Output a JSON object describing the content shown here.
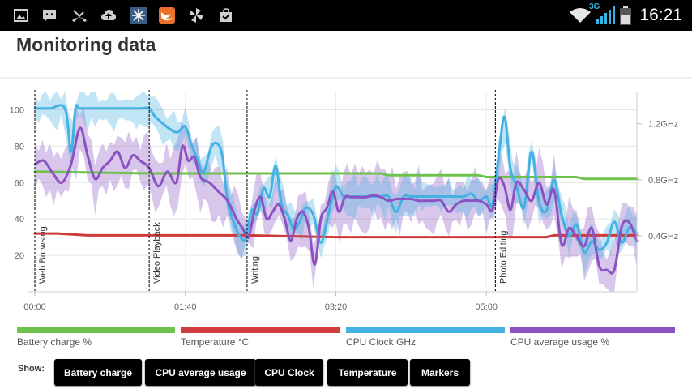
{
  "status_bar": {
    "time": "16:21",
    "network": "3G",
    "left_icons": [
      "gallery-icon",
      "chat-icon",
      "missed-call-icon",
      "cloud-upload-icon",
      "snowflake-icon",
      "swift-icon",
      "pinwheel-icon",
      "shopping-bag-icon"
    ],
    "right_icons": [
      "wifi-icon",
      "signal-icon",
      "battery-icon"
    ]
  },
  "page": {
    "title": "Monitoring data"
  },
  "chart_data": {
    "type": "line",
    "x_unit": "mm:ss",
    "x_ticks": [
      "00:00",
      "01:40",
      "03:20",
      "05:00"
    ],
    "x_tick_values": [
      0,
      100,
      200,
      300
    ],
    "xlim": [
      0,
      400
    ],
    "y_left_ticks": [
      "20",
      "40",
      "60",
      "80",
      "100"
    ],
    "y_left_tick_values": [
      20,
      40,
      60,
      80,
      100
    ],
    "ylim_left": [
      0,
      110
    ],
    "y_right_ticks": [
      "0.4GHz",
      "0.8GHz",
      "1.2GHz"
    ],
    "y_right_tick_values": [
      0.4,
      0.8,
      1.2
    ],
    "ylim_right": [
      0,
      1.43
    ],
    "grid": true,
    "markers": [
      {
        "x": 0,
        "label": "Web Browsing"
      },
      {
        "x": 76,
        "label": "Video Playback"
      },
      {
        "x": 141,
        "label": "Writing"
      },
      {
        "x": 306,
        "label": "Photo Editing"
      }
    ],
    "series": [
      {
        "name": "Battery charge %",
        "axis": "left",
        "color": "#6dc24b",
        "x": [
          0,
          76,
          141,
          160,
          230,
          235,
          295,
          300,
          360,
          365,
          400
        ],
        "values": [
          66,
          65,
          65,
          65,
          65,
          64,
          64,
          63,
          63,
          62,
          62
        ]
      },
      {
        "name": "Temperature °C",
        "axis": "left",
        "color": "#cf3a3a",
        "x": [
          0,
          15,
          35,
          50,
          100,
          141,
          200,
          300,
          340,
          345,
          400
        ],
        "values": [
          32,
          32,
          31,
          31,
          31,
          31,
          30,
          30,
          30,
          31,
          31
        ]
      },
      {
        "name": "CPU Clock GHz",
        "axis": "right",
        "color": "#45b1e2",
        "x": [
          0,
          10,
          20,
          24,
          27,
          30,
          40,
          50,
          60,
          70,
          76,
          80,
          90,
          95,
          100,
          104,
          108,
          112,
          118,
          124,
          128,
          132,
          136,
          140,
          144,
          148,
          152,
          156,
          160,
          164,
          168,
          172,
          176,
          180,
          185,
          190,
          195,
          200,
          205,
          210,
          215,
          220,
          225,
          230,
          235,
          240,
          245,
          250,
          255,
          260,
          265,
          270,
          275,
          280,
          285,
          290,
          295,
          300,
          304,
          308,
          312,
          316,
          320,
          325,
          330,
          335,
          340,
          345,
          350,
          355,
          360,
          365,
          370,
          375,
          380,
          385,
          390,
          395,
          400
        ],
        "values": [
          1.31,
          1.31,
          1.31,
          1.0,
          1.31,
          1.31,
          1.31,
          1.31,
          1.31,
          1.31,
          1.31,
          1.25,
          1.16,
          1.14,
          1.18,
          1.05,
          0.95,
          0.85,
          1.05,
          1.0,
          0.65,
          0.5,
          0.4,
          0.38,
          0.58,
          0.56,
          0.74,
          0.68,
          0.9,
          0.62,
          0.55,
          0.45,
          0.5,
          0.6,
          0.55,
          0.35,
          0.55,
          0.75,
          0.68,
          0.68,
          0.68,
          0.68,
          0.68,
          0.68,
          0.68,
          0.57,
          0.68,
          0.68,
          0.68,
          0.68,
          0.68,
          0.68,
          0.68,
          0.68,
          0.68,
          0.7,
          0.65,
          0.68,
          0.62,
          0.95,
          1.25,
          0.88,
          0.76,
          0.6,
          1.0,
          0.64,
          0.58,
          0.8,
          0.55,
          0.4,
          0.48,
          0.28,
          0.36,
          0.3,
          0.35,
          0.5,
          0.35,
          0.46,
          0.42
        ]
      },
      {
        "name": "CPU average usage %",
        "axis": "left",
        "color": "#8a53c1",
        "x": [
          0,
          6,
          12,
          18,
          24,
          30,
          35,
          40,
          45,
          50,
          55,
          60,
          65,
          70,
          76,
          82,
          88,
          94,
          98,
          102,
          106,
          110,
          116,
          122,
          128,
          134,
          138,
          142,
          146,
          150,
          154,
          158,
          162,
          166,
          170,
          174,
          178,
          182,
          186,
          190,
          194,
          198,
          202,
          206,
          210,
          215,
          220,
          225,
          230,
          235,
          240,
          245,
          250,
          255,
          260,
          265,
          270,
          275,
          280,
          285,
          290,
          295,
          300,
          304,
          308,
          312,
          316,
          320,
          325,
          330,
          335,
          340,
          345,
          350,
          355,
          360,
          365,
          370,
          375,
          380,
          385,
          390,
          395,
          400
        ],
        "values": [
          70,
          72,
          65,
          60,
          70,
          90,
          75,
          62,
          68,
          72,
          77,
          68,
          75,
          72,
          68,
          58,
          66,
          60,
          80,
          72,
          74,
          63,
          60,
          55,
          50,
          40,
          35,
          30,
          45,
          52,
          40,
          44,
          48,
          40,
          28,
          40,
          44,
          35,
          15,
          40,
          46,
          55,
          44,
          52,
          52,
          52,
          52,
          53,
          52,
          50,
          51,
          51,
          51,
          50,
          50,
          50,
          50,
          44,
          48,
          50,
          50,
          50,
          48,
          45,
          62,
          58,
          45,
          60,
          56,
          50,
          60,
          48,
          56,
          26,
          35,
          30,
          25,
          35,
          14,
          12,
          12,
          36,
          38,
          28
        ]
      }
    ]
  },
  "legend": [
    {
      "label": "Battery charge %",
      "color": "#6dc24b"
    },
    {
      "label": "Temperature °C",
      "color": "#cf3a3a"
    },
    {
      "label": "CPU Clock GHz",
      "color": "#45b1e2"
    },
    {
      "label": "CPU average usage %",
      "color": "#8a53c1"
    }
  ],
  "show": {
    "label": "Show:",
    "buttons": [
      "Battery charge",
      "CPU average usage",
      "CPU Clock",
      "Temperature",
      "Markers"
    ]
  }
}
